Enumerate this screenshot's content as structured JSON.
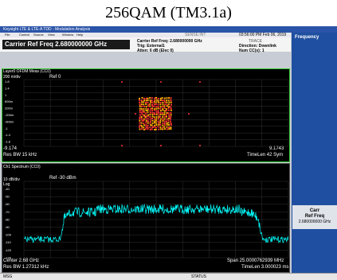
{
  "title": "256QAM (TM3.1a)",
  "window": {
    "title": "Keysight LTE & LTE-A TDD - Modulation Analysis",
    "menu": [
      "File",
      "Control",
      "Source",
      "View",
      "Window",
      "Help"
    ]
  },
  "header": {
    "carrier": "Carrier Ref Freq 2.680000000 GHz",
    "info": [
      "Carrier Ref Freq: 2.680000000 GHz",
      "Trig: External1",
      "Atten: 6 dB (Elec 0)"
    ],
    "sense": "SENSE:INT",
    "time": "03:56:00 PM Feb 06, 2019",
    "trace": "TRACE",
    "right": [
      "Direction: Downlink",
      "Num CC(s): 1"
    ]
  },
  "constellation": {
    "title": "Layer0 OFDM Meas (CC0)",
    "scale": "200 m/div",
    "ref": "Ref 0",
    "yticks": [
      "1.8",
      "1.4",
      "1",
      "600m",
      "200m",
      "-200m",
      "-600m",
      "-1",
      "-1.4",
      "-1.8"
    ],
    "xmin": "-9.174",
    "xmax": "9.1743",
    "left": "Res BW 15 kHz",
    "right": "TimeLen 42  Sym"
  },
  "spectrum": {
    "title": "Ch1 Spectrum (CC0)",
    "scale": "10 dB/div",
    "ref": "Ref -30 dBm",
    "log": "Log",
    "yticks": [
      "-40",
      "-50",
      "-60",
      "-70",
      "-80",
      "-90",
      "-100",
      "-110",
      "-120",
      "-130"
    ],
    "center": "Center 2.68 GHz",
    "rbw": "Res BW 1.27312 kHz",
    "span": "Span 25.0000762939 MHz",
    "timelen": "TimeLen 3.000023 ms"
  },
  "softkeys": {
    "menu": "Frequency",
    "key": [
      "Carr",
      "Ref Freq",
      "2.680000000 GHz"
    ]
  },
  "status": {
    "msg": "MSG",
    "status": "STATUS"
  }
}
